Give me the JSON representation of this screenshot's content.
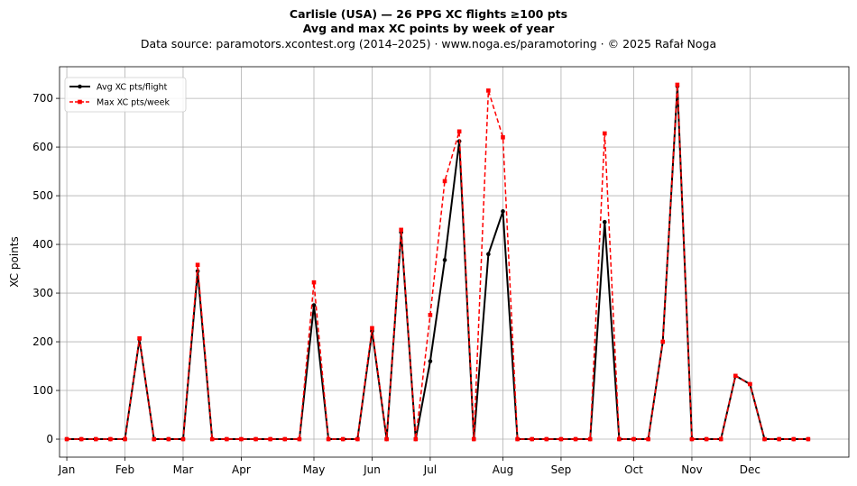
{
  "header": {
    "title": "Carlisle (USA)  —  26 PPG XC flights ≥100 pts",
    "subtitle": "Avg and max XC points by week of year",
    "source": "Data source: paramotors.xcontest.org (2014–2025)  ·  www.noga.es/paramotoring  ·  © 2025 Rafał Noga"
  },
  "chart_data": {
    "type": "line",
    "ylabel": "XC points",
    "xlabel": "",
    "xlim": [
      -0.5,
      53.8
    ],
    "ylim": [
      -37,
      765
    ],
    "grid": true,
    "legend_position": "top-left",
    "x_ticks": [
      {
        "label": "Jan",
        "x": 0
      },
      {
        "label": "Feb",
        "x": 4
      },
      {
        "label": "Mar",
        "x": 8
      },
      {
        "label": "Apr",
        "x": 12
      },
      {
        "label": "May",
        "x": 17
      },
      {
        "label": "Jun",
        "x": 21
      },
      {
        "label": "Jul",
        "x": 25
      },
      {
        "label": "Aug",
        "x": 30
      },
      {
        "label": "Sep",
        "x": 34
      },
      {
        "label": "Oct",
        "x": 39
      },
      {
        "label": "Nov",
        "x": 43
      },
      {
        "label": "Dec",
        "x": 47
      }
    ],
    "y_ticks": [
      0,
      100,
      200,
      300,
      400,
      500,
      600,
      700
    ],
    "x": [
      0,
      1,
      2,
      3,
      4,
      5,
      6,
      7,
      8,
      9,
      10,
      11,
      12,
      13,
      14,
      15,
      16,
      17,
      18,
      19,
      20,
      21,
      22,
      23,
      24,
      25,
      26,
      27,
      28,
      29,
      30,
      31,
      32,
      33,
      34,
      35,
      36,
      37,
      38,
      39,
      40,
      41,
      42,
      43,
      44,
      45,
      46,
      47,
      48,
      49,
      50,
      51
    ],
    "series": [
      {
        "name": "Avg XC pts/flight",
        "color": "#000000",
        "line_style": "solid",
        "marker": "circle",
        "values": [
          0,
          0,
          0,
          0,
          0,
          205,
          0,
          0,
          0,
          345,
          0,
          0,
          0,
          0,
          0,
          0,
          0,
          275,
          0,
          0,
          0,
          222,
          0,
          425,
          0,
          160,
          368,
          612,
          0,
          380,
          468,
          0,
          0,
          0,
          0,
          0,
          0,
          446,
          0,
          0,
          0,
          200,
          725,
          0,
          0,
          0,
          130,
          113,
          0,
          0,
          0,
          0
        ]
      },
      {
        "name": "Max XC pts/week",
        "color": "#ff0000",
        "line_style": "dashed",
        "marker": "square",
        "values": [
          0,
          0,
          0,
          0,
          0,
          207,
          0,
          0,
          0,
          358,
          0,
          0,
          0,
          0,
          0,
          0,
          0,
          322,
          0,
          0,
          0,
          228,
          0,
          430,
          0,
          255,
          530,
          632,
          0,
          716,
          620,
          0,
          0,
          0,
          0,
          0,
          0,
          628,
          0,
          0,
          0,
          200,
          728,
          0,
          0,
          0,
          130,
          113,
          0,
          0,
          0,
          0
        ]
      }
    ]
  }
}
